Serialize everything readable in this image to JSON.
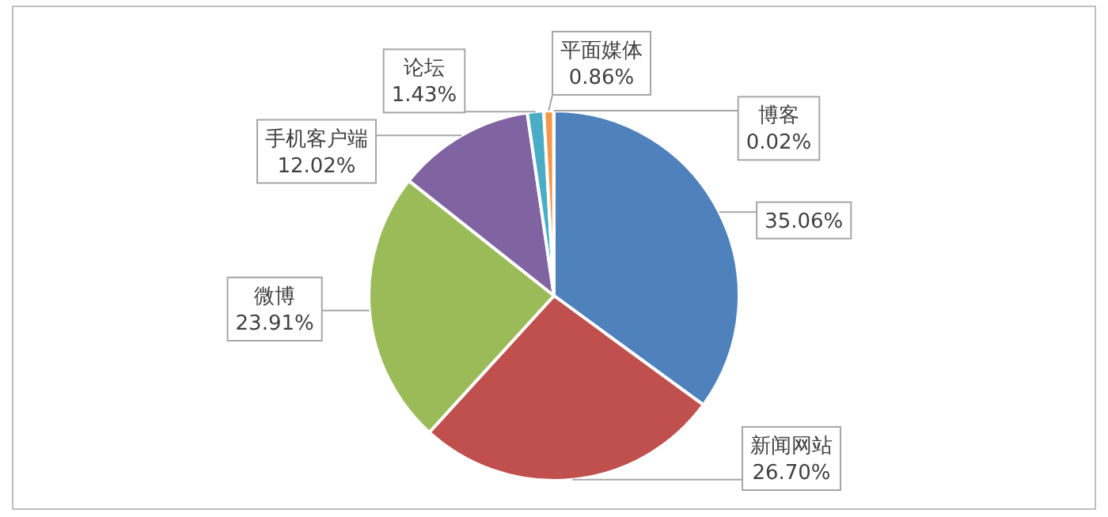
{
  "chart_data": {
    "type": "pie",
    "categories": [
      null,
      "新闻网站",
      "微博",
      "手机客户端",
      "论坛",
      "平面媒体",
      "博客"
    ],
    "values": [
      35.06,
      26.7,
      23.91,
      12.02,
      1.43,
      0.86,
      0.02
    ],
    "value_labels": [
      "35.06%",
      "26.70%",
      "23.91%",
      "12.02%",
      "1.43%",
      "0.86%",
      "0.02%"
    ],
    "colors": [
      "#4f81bd",
      "#c0504d",
      "#9bbb59",
      "#8064a2",
      "#4bacc6",
      "#f79646",
      "#2c4d75"
    ]
  }
}
